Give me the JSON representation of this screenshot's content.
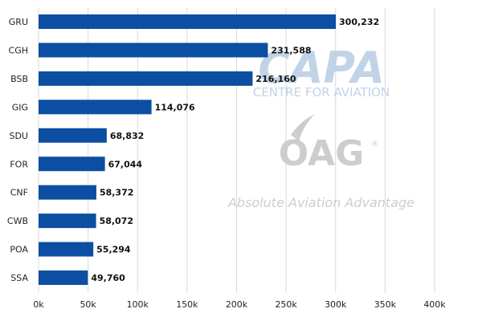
{
  "chart_data": {
    "type": "bar",
    "orientation": "horizontal",
    "categories": [
      "GRU",
      "CGH",
      "BSB",
      "GIG",
      "SDU",
      "FOR",
      "CNF",
      "CWB",
      "POA",
      "SSA"
    ],
    "values": [
      300232,
      231588,
      216160,
      114076,
      68832,
      67044,
      58372,
      58072,
      55294,
      49760
    ],
    "value_labels": [
      "300,232",
      "231,588",
      "216,160",
      "114,076",
      "68,832",
      "67,044",
      "58,372",
      "58,072",
      "55,294",
      "49,760"
    ],
    "xlim": [
      0,
      400000
    ],
    "x_ticks": [
      0,
      50000,
      100000,
      150000,
      200000,
      250000,
      300000,
      350000,
      400000
    ],
    "x_tick_labels": [
      "0k",
      "50k",
      "100k",
      "150k",
      "200k",
      "250k",
      "300k",
      "350k",
      "400k"
    ],
    "grid": true,
    "bar_color": "#0B4EA2"
  },
  "watermarks": {
    "capa": {
      "main": "CAPA",
      "sub": "CENTRE FOR AVIATION",
      "color": "#b7cde3"
    },
    "oag": {
      "main": "OAG",
      "tagline": "Absolute Aviation Advantage",
      "color": "#c8c8c8"
    }
  }
}
